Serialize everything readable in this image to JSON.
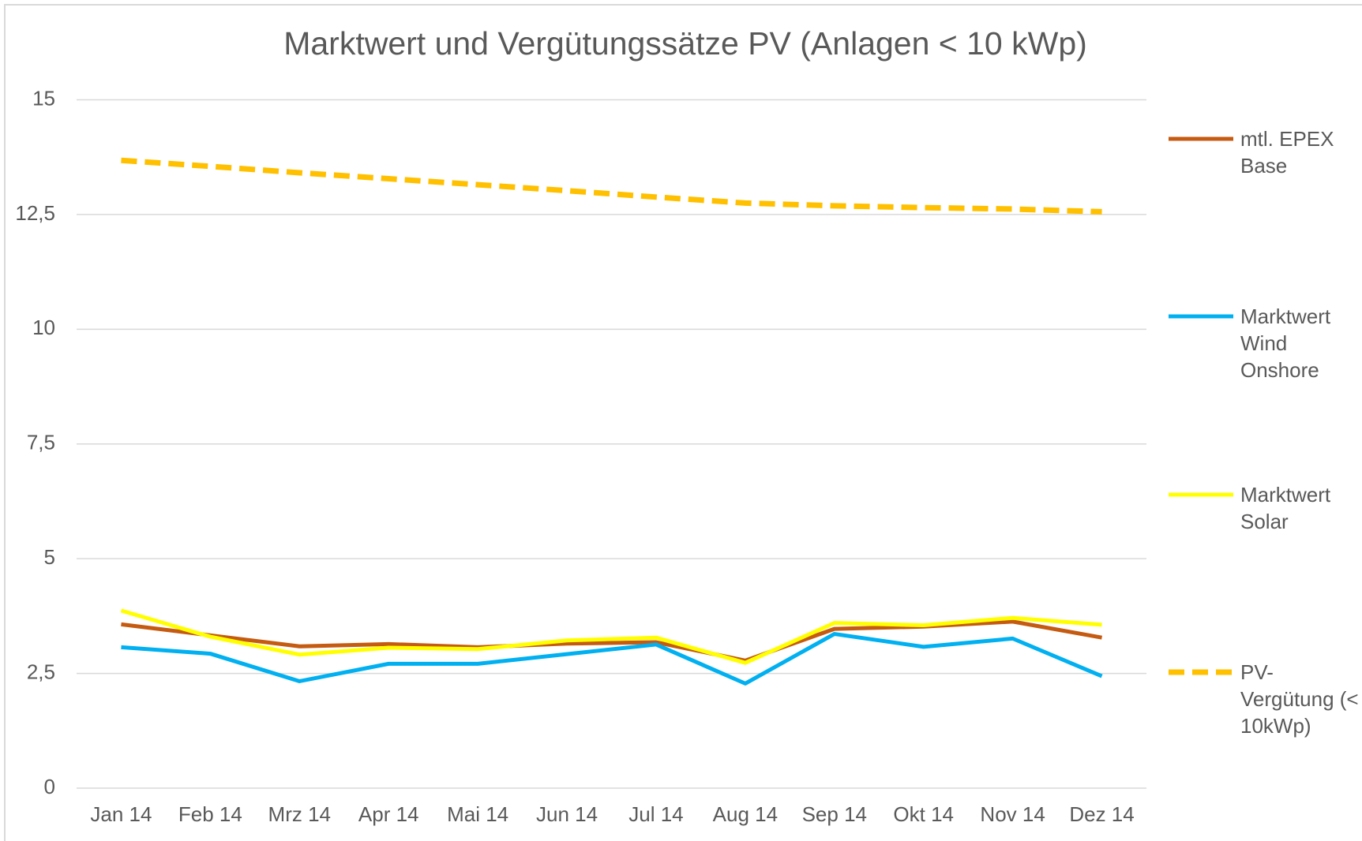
{
  "chart_data": {
    "type": "line",
    "title": "Marktwert und Vergütungssätze PV (Anlagen < 10 kWp)",
    "categories": [
      "Jan 14",
      "Feb 14",
      "Mrz 14",
      "Apr 14",
      "Mai 14",
      "Jun 14",
      "Jul 14",
      "Aug 14",
      "Sep 14",
      "Okt 14",
      "Nov 14",
      "Dez 14"
    ],
    "series": [
      {
        "name": "mtl. EPEX Base",
        "color": "#c55a11",
        "dashed": false,
        "values": [
          3.57,
          3.33,
          3.09,
          3.14,
          3.07,
          3.15,
          3.18,
          2.78,
          3.47,
          3.52,
          3.63,
          3.28
        ]
      },
      {
        "name": "Marktwert Wind Onshore",
        "color": "#00b0f0",
        "dashed": false,
        "values": [
          3.07,
          2.93,
          2.33,
          2.71,
          2.71,
          2.92,
          3.13,
          2.28,
          3.36,
          3.08,
          3.26,
          2.44
        ]
      },
      {
        "name": "Marktwert Solar",
        "color": "#ffff00",
        "dashed": false,
        "values": [
          3.87,
          3.3,
          2.91,
          3.06,
          3.03,
          3.22,
          3.28,
          2.73,
          3.6,
          3.55,
          3.71,
          3.56
        ]
      },
      {
        "name": "PV-Vergütung (< 10kWp)",
        "color": "#ffc000",
        "dashed": true,
        "values": [
          13.68,
          13.55,
          13.41,
          13.28,
          13.15,
          13.02,
          12.88,
          12.75,
          12.69,
          12.65,
          12.62,
          12.56
        ]
      }
    ],
    "ylim": [
      0,
      15
    ],
    "yticks": [
      0,
      {
        "value": 2.5,
        "label": "2,5"
      },
      5,
      {
        "value": 7.5,
        "label": "7,5"
      },
      10,
      {
        "value": 12.5,
        "label": "12,5"
      },
      15
    ],
    "grid": true,
    "legend": "right"
  }
}
